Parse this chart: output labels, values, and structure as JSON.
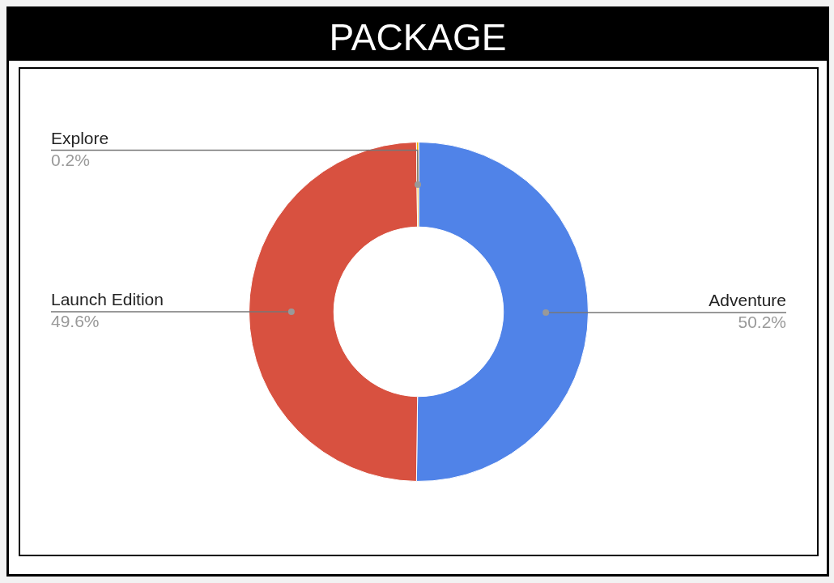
{
  "chart_data": {
    "type": "donut",
    "title": "PACKAGE",
    "categories": [
      "Adventure",
      "Launch Edition",
      "Explore"
    ],
    "values": [
      50.2,
      49.6,
      0.2
    ],
    "value_labels": [
      "50.2%",
      "49.6%",
      "0.2%"
    ],
    "colors": [
      "#5083e8",
      "#d85140",
      "#f4b400"
    ],
    "legend": false
  }
}
